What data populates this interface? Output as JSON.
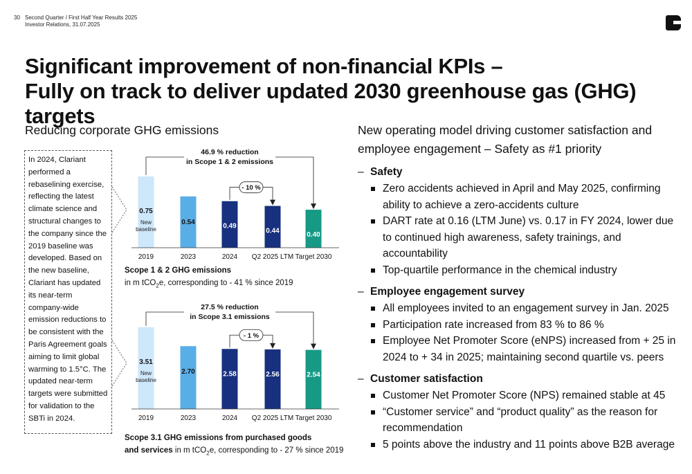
{
  "header": {
    "page_number": "30",
    "line1": "Second Quarter / First Half Year Results 2025",
    "line2": "Investor Relations, 31.07.2025"
  },
  "title": {
    "line1": "Significant improvement of non-financial KPIs –",
    "line2": "Fully on track to deliver updated 2030 greenhouse gas (GHG) targets"
  },
  "left": {
    "subhead": "Reducing corporate GHG emissions",
    "callout": "In 2024, Clariant performed a rebaselining exercise, reflecting the latest climate science and structural changes to the company since the 2019 baseline was developed. Based on the new baseline, Clariant has updated its near-term company-wide emission reductions to be consistent with the Paris Agreement goals aiming to limit global warming to 1.5°C. The updated near-term targets were submitted for validation to the SBTi in 2024."
  },
  "colors": {
    "bar_2019": "#cde7fb",
    "bar_2023": "#5aaee8",
    "bar_2024": "#17307f",
    "bar_q2": "#17307f",
    "bar_target": "#169a86"
  },
  "chart_data": [
    {
      "type": "bar",
      "categories": [
        "2019",
        "2023",
        "2024",
        "Q2 2025 LTM",
        "Target 2030"
      ],
      "values": [
        0.75,
        0.54,
        0.49,
        0.44,
        0.4
      ],
      "value_labels": [
        "0.75",
        "0.54",
        "0.49",
        "0.44",
        "0.40"
      ],
      "baseline_note": "New baseline",
      "reduction_label": [
        "46.9 % reduction",
        "in Scope 1 & 2 emissions"
      ],
      "step_label": "- 10 %",
      "caption_bold": "Scope 1 & 2 GHG emissions",
      "caption_pre": "in m tCO",
      "caption_sub": "2",
      "caption_post": "e, corresponding to - 41 % since 2019",
      "ylim": [
        0,
        0.75
      ]
    },
    {
      "type": "bar",
      "categories": [
        "2019",
        "2023",
        "2024",
        "Q2 2025 LTM",
        "Target 2030"
      ],
      "values": [
        3.51,
        2.7,
        2.58,
        2.56,
        2.54
      ],
      "value_labels": [
        "3.51",
        "2.70",
        "2.58",
        "2.56",
        "2.54"
      ],
      "baseline_note": "New baseline",
      "reduction_label": [
        "27.5 % reduction",
        "in Scope 3.1 emissions"
      ],
      "step_label": "- 1 %",
      "caption_bold_1": "Scope 3.1 GHG emissions from purchased goods",
      "caption_bold_2": "and services",
      "caption_pre": " in m tCO",
      "caption_sub": "2",
      "caption_post": "e, corresponding to - 27 % since 2019",
      "ylim": [
        0,
        3.51
      ]
    }
  ],
  "right": {
    "subhead_line1": "New operating model driving customer satisfaction and",
    "subhead_line2": "employee engagement – Safety as #1 priority",
    "sections": [
      {
        "dash": "–",
        "heading": "Safety",
        "items": [
          "Zero accidents achieved in April and May 2025, confirming ability to achieve a zero-accidents culture",
          "DART rate at 0.16 (LTM June) vs. 0.17 in FY 2024, lower due to continued high awareness, safety trainings, and accountability",
          "Top-quartile performance in the chemical industry"
        ]
      },
      {
        "dash": "–",
        "heading": "Employee engagement survey",
        "items": [
          "All employees invited to an engagement survey in Jan. 2025",
          "Participation rate increased from 83 % to 86 %",
          "Employee Net Promoter Score (eNPS) increased from + 25 in 2024 to + 34 in 2025; maintaining second quartile vs. peers"
        ]
      },
      {
        "dash": "–",
        "heading": "Customer satisfaction",
        "items": [
          "Customer Net Promoter Score (NPS) remained stable at 45",
          "“Customer service” and “product quality” as the reason for recommendation",
          "5 points above the industry and 11 points above B2B average"
        ]
      }
    ]
  }
}
